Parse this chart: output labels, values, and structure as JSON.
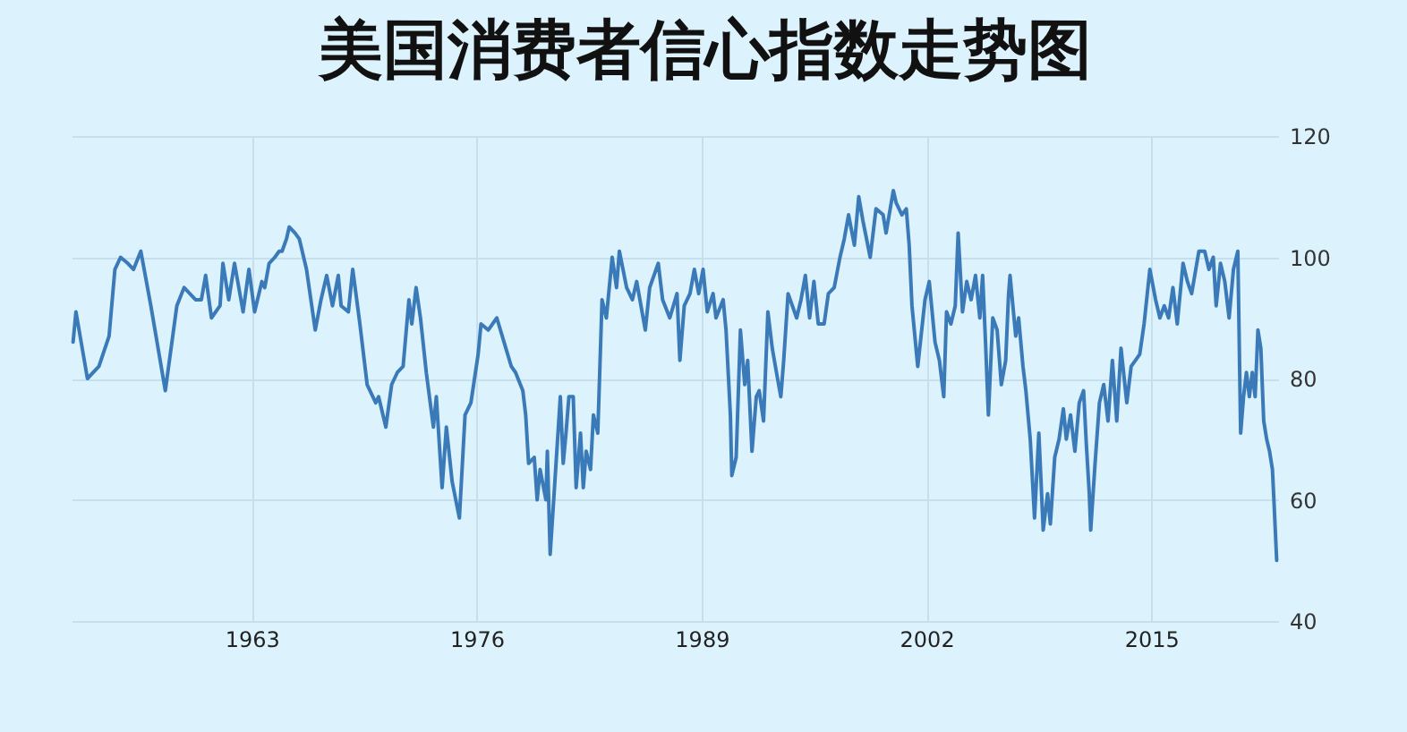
{
  "chart_data": {
    "type": "line",
    "title": "美国消费者信心指数走势图",
    "x": [
      "1952-09",
      "1952-11",
      "1953-07",
      "1954-03",
      "1954-10",
      "1955-02",
      "1955-06",
      "1955-11",
      "1956-03",
      "1956-08",
      "1957-03",
      "1958-01",
      "1958-09",
      "1959-02",
      "1959-10",
      "1960-02",
      "1960-05",
      "1960-09",
      "1961-03",
      "1961-05",
      "1961-09",
      "1962-01",
      "1962-07",
      "1962-11",
      "1963-03",
      "1963-08",
      "1963-10",
      "1964-01",
      "1964-05",
      "1964-08",
      "1964-10",
      "1965-01",
      "1965-03",
      "1965-07",
      "1965-10",
      "1966-03",
      "1966-09",
      "1967-01",
      "1967-05",
      "1967-09",
      "1968-01",
      "1968-03",
      "1968-08",
      "1968-11",
      "1969-04",
      "1969-09",
      "1970-03",
      "1970-05",
      "1970-10",
      "1971-02",
      "1971-06",
      "1971-10",
      "1972-02",
      "1972-04",
      "1972-07",
      "1972-10",
      "1973-02",
      "1973-07",
      "1973-09",
      "1974-01",
      "1974-04",
      "1974-08",
      "1975-01",
      "1975-05",
      "1975-09",
      "1976-02",
      "1976-04",
      "1976-09",
      "1977-03",
      "1977-08",
      "1978-01",
      "1978-04",
      "1978-09",
      "1978-11",
      "1979-01",
      "1979-05",
      "1979-07",
      "1979-09",
      "1980-01",
      "1980-02",
      "1980-04",
      "1980-07",
      "1980-11",
      "1981-01",
      "1981-03",
      "1981-05",
      "1981-08",
      "1981-10",
      "1982-01",
      "1982-03",
      "1982-05",
      "1982-08",
      "1982-10",
      "1983-01",
      "1983-04",
      "1983-07",
      "1983-11",
      "1984-02",
      "1984-04",
      "1984-09",
      "1985-01",
      "1985-04",
      "1985-07",
      "1985-10",
      "1986-01",
      "1986-07",
      "1986-10",
      "1987-03",
      "1987-08",
      "1987-10",
      "1988-01",
      "1988-05",
      "1988-08",
      "1988-11",
      "1989-02",
      "1989-05",
      "1989-09",
      "1989-11",
      "1990-04",
      "1990-06",
      "1990-09",
      "1990-10",
      "1991-01",
      "1991-04",
      "1991-07",
      "1991-09",
      "1991-12",
      "1992-03",
      "1992-05",
      "1992-08",
      "1992-11",
      "1993-02",
      "1993-05",
      "1993-08",
      "1993-10",
      "1994-01",
      "1994-04",
      "1994-07",
      "1994-10",
      "1995-01",
      "1995-04",
      "1995-07",
      "1995-10",
      "1996-02",
      "1996-05",
      "1996-09",
      "1997-01",
      "1997-04",
      "1997-07",
      "1997-11",
      "1998-02",
      "1998-05",
      "1998-10",
      "1999-02",
      "1999-07",
      "1999-09",
      "2000-02",
      "2000-04",
      "2000-08",
      "2000-11",
      "2001-01",
      "2001-03",
      "2001-07",
      "2001-12",
      "2002-03",
      "2002-07",
      "2002-10",
      "2003-01",
      "2003-03",
      "2003-06",
      "2003-09",
      "2003-11",
      "2004-02",
      "2004-05",
      "2004-08",
      "2004-11",
      "2005-02",
      "2005-04",
      "2005-06",
      "2005-08",
      "2005-11",
      "2006-02",
      "2006-05",
      "2006-08",
      "2006-10",
      "2006-11",
      "2007-03",
      "2007-05",
      "2007-08",
      "2007-10",
      "2008-01",
      "2008-04",
      "2008-07",
      "2008-10",
      "2009-01",
      "2009-03",
      "2009-06",
      "2009-09",
      "2009-12",
      "2010-02",
      "2010-05",
      "2010-08",
      "2010-11",
      "2011-02",
      "2011-04",
      "2011-06",
      "2011-07",
      "2011-10",
      "2012-01",
      "2012-04",
      "2012-07",
      "2012-10",
      "2013-01",
      "2013-04",
      "2013-08",
      "2013-11",
      "2014-02",
      "2014-05",
      "2014-08",
      "2014-12",
      "2015-04",
      "2015-07",
      "2015-10",
      "2016-01",
      "2016-04",
      "2016-07",
      "2016-11",
      "2017-02",
      "2017-05",
      "2017-10",
      "2018-02",
      "2018-05",
      "2018-08",
      "2018-10",
      "2019-01",
      "2019-04",
      "2019-07",
      "2019-10",
      "2020-01",
      "2020-03",
      "2020-05",
      "2020-07",
      "2020-09",
      "2020-11",
      "2021-01",
      "2021-03",
      "2021-05",
      "2021-07",
      "2021-09",
      "2021-11",
      "2022-01",
      "2022-02",
      "2022-04"
    ],
    "values": [
      86,
      91,
      80,
      82,
      87,
      98,
      100,
      99,
      98,
      101,
      92,
      78,
      92,
      95,
      93,
      93,
      97,
      90,
      92,
      99,
      93,
      99,
      91,
      98,
      91,
      96,
      95,
      99,
      100,
      101,
      101,
      103,
      105,
      104,
      103,
      98,
      88,
      93,
      97,
      92,
      97,
      92,
      91,
      98,
      89,
      79,
      76,
      77,
      72,
      79,
      81,
      82,
      93,
      89,
      95,
      90,
      81,
      72,
      77,
      62,
      72,
      63,
      57,
      74,
      76,
      84,
      89,
      88,
      90,
      86,
      82,
      81,
      78,
      74,
      66,
      67,
      60,
      65,
      60,
      68,
      51,
      62,
      77,
      66,
      71,
      77,
      77,
      62,
      71,
      62,
      68,
      65,
      74,
      71,
      93,
      90,
      100,
      95,
      101,
      95,
      93,
      96,
      92,
      88,
      95,
      99,
      93,
      90,
      94,
      83,
      92,
      94,
      98,
      94,
      98,
      91,
      94,
      90,
      93,
      88,
      74,
      64,
      67,
      88,
      79,
      83,
      68,
      77,
      78,
      73,
      91,
      85,
      81,
      77,
      83,
      94,
      92,
      90,
      93,
      97,
      90,
      96,
      89,
      89,
      94,
      95,
      100,
      103,
      107,
      102,
      110,
      106,
      100,
      108,
      107,
      104,
      111,
      109,
      107,
      108,
      102,
      92,
      82,
      93,
      96,
      86,
      83,
      77,
      91,
      89,
      92,
      104,
      91,
      96,
      93,
      97,
      90,
      97,
      86,
      74,
      90,
      88,
      79,
      83,
      94,
      97,
      87,
      90,
      82,
      78,
      70,
      57,
      71,
      55,
      61,
      56,
      67,
      70,
      75,
      70,
      74,
      68,
      76,
      78,
      69,
      61,
      55,
      66,
      76,
      79,
      73,
      83,
      73,
      85,
      76,
      82,
      83,
      84,
      89,
      98,
      93,
      90,
      92,
      90,
      95,
      89,
      99,
      96,
      94,
      101,
      101,
      98,
      100,
      92,
      99,
      96,
      90,
      98,
      101,
      71,
      77,
      81,
      77,
      81,
      77,
      88,
      85,
      73,
      70,
      68,
      65,
      60,
      50
    ],
    "color": "#3b7ab8",
    "xlim": [
      "1952-08",
      "2022-05"
    ],
    "xticks": [
      "1963",
      "1976",
      "1989",
      "2002",
      "2015"
    ],
    "ylim": [
      40,
      120
    ],
    "yticks": [
      40,
      60,
      80,
      100,
      120
    ],
    "grid": true
  }
}
